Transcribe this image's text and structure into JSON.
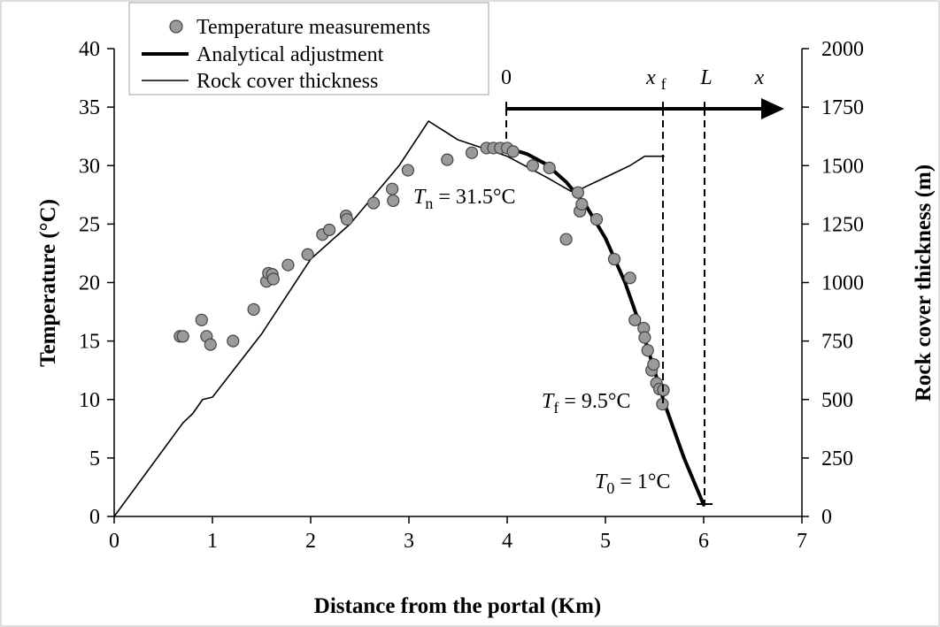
{
  "chart_data": {
    "type": "scatter",
    "xlabel": "Distance from the portal (Km)",
    "ylabel": "Temperature (°C)",
    "y2label": "Rock cover thickness (m)",
    "xlim": [
      0,
      7
    ],
    "ylim": [
      0,
      40
    ],
    "y2lim": [
      0,
      2000
    ],
    "xticks": [
      "0",
      "1",
      "2",
      "3",
      "4",
      "5",
      "6",
      "7"
    ],
    "yticks": [
      "0",
      "5",
      "10",
      "15",
      "20",
      "25",
      "30",
      "35",
      "40"
    ],
    "y2ticks": [
      "0",
      "250",
      "500",
      "750",
      "1000",
      "1250",
      "1500",
      "1750",
      "2000"
    ],
    "grid": false,
    "legend_position": "top-left",
    "series": [
      {
        "name": "Temperature measurements",
        "kind": "markers",
        "axis": "left",
        "color": "#9a9a9a",
        "x": [
          0.67,
          0.7,
          0.89,
          0.94,
          0.98,
          1.21,
          1.42,
          1.55,
          1.57,
          1.61,
          1.62,
          1.77,
          1.97,
          2.12,
          2.19,
          2.36,
          2.37,
          2.64,
          2.83,
          2.84,
          2.99,
          3.39,
          3.64,
          3.79,
          3.86,
          3.93,
          4.0,
          4.06,
          4.26,
          4.43,
          4.6,
          4.72,
          4.74,
          4.76,
          4.91,
          5.09,
          5.25,
          5.3,
          5.39,
          5.4,
          5.43,
          5.47,
          5.49,
          5.52,
          5.55,
          5.58,
          5.59
        ],
        "y": [
          15.4,
          15.4,
          16.8,
          15.4,
          14.7,
          15.0,
          17.7,
          20.1,
          20.8,
          20.7,
          20.3,
          21.5,
          22.4,
          24.1,
          24.5,
          25.7,
          25.4,
          26.8,
          28.0,
          27.0,
          29.6,
          30.5,
          31.1,
          31.5,
          31.5,
          31.5,
          31.5,
          31.2,
          30.0,
          29.8,
          23.7,
          27.7,
          26.1,
          26.7,
          25.4,
          22.0,
          20.4,
          16.8,
          16.1,
          15.3,
          14.2,
          12.5,
          13.0,
          11.4,
          10.9,
          9.6,
          10.8
        ]
      },
      {
        "name": "Analytical adjustment",
        "kind": "thick-line",
        "axis": "left",
        "color": "#000000",
        "x": [
          3.75,
          4.0,
          4.2,
          4.4,
          4.6,
          4.8,
          5.0,
          5.2,
          5.4,
          5.6,
          5.8,
          6.0
        ],
        "y": [
          31.6,
          31.5,
          31.0,
          30.1,
          28.6,
          26.6,
          23.8,
          20.0,
          15.2,
          9.7,
          5.0,
          1.0
        ]
      },
      {
        "name": "Rock cover thickness",
        "kind": "thin-line",
        "axis": "right",
        "color": "#000000",
        "x": [
          0.0,
          0.7,
          0.8,
          0.9,
          1.0,
          1.5,
          2.0,
          2.4,
          2.9,
          3.2,
          3.5,
          4.0,
          4.4,
          4.65,
          4.75,
          5.0,
          5.25,
          5.4,
          5.6
        ],
        "y": [
          0,
          400,
          440,
          500,
          510,
          780,
          1100,
          1250,
          1500,
          1690,
          1610,
          1540,
          1450,
          1390,
          1400,
          1450,
          1500,
          1540,
          1540
        ]
      }
    ],
    "annotations": {
      "tn": {
        "sym": "T",
        "sub": "n",
        "rest": " = 31.5°C"
      },
      "tf": {
        "sym": "T",
        "sub": "f",
        "rest": " = 9.5°C"
      },
      "t0": {
        "sym": "T",
        "sub": "0",
        "rest": " = 1°C"
      },
      "axis_zero": "0",
      "axis_xf": {
        "sym": "x",
        "sub": "f"
      },
      "axis_L": "L",
      "axis_x": "x"
    }
  }
}
